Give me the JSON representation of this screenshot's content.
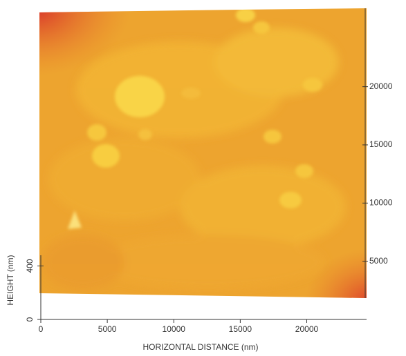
{
  "chart_data": {
    "type": "image",
    "xlabel": "HORIZONTAL DISTANCE (nm)",
    "ylabel": "HEIGHT (nm)",
    "xlim": [
      0,
      24500
    ],
    "xticks": [
      0,
      5000,
      10000,
      15000,
      20000
    ],
    "ylim": [
      0,
      480
    ],
    "yticks": [
      0,
      400
    ],
    "y2lim": [
      0,
      26500
    ],
    "y2ticks": [
      5000,
      10000,
      15000,
      20000
    ]
  }
}
